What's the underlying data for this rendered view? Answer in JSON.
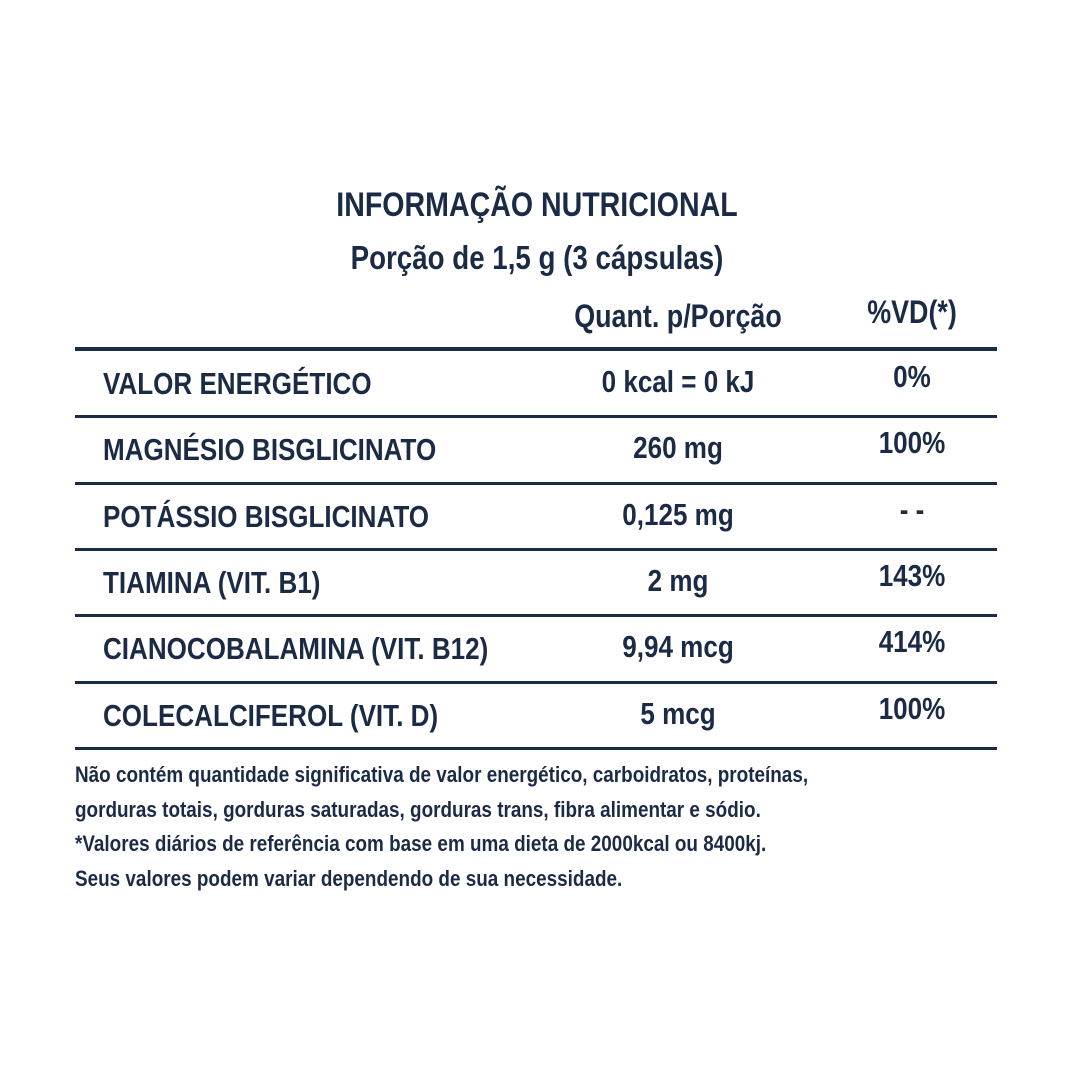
{
  "header": {
    "title": "INFORMAÇÃO NUTRICIONAL",
    "subtitle": "Porção de 1,5 g (3 cápsulas)"
  },
  "table": {
    "columns": [
      "Quant. p/Porção",
      "%VD(*)"
    ],
    "rows": [
      [
        "VALOR ENERGÉTICO",
        "0 kcal = 0 kJ",
        "0%"
      ],
      [
        "MAGNÉSIO BISGLICINATO",
        "260 mg",
        "100%"
      ],
      [
        "POTÁSSIO BISGLICINATO",
        "0,125 mg",
        "- -"
      ],
      [
        "TIAMINA (VIT. B1)",
        "2 mg",
        "143%"
      ],
      [
        "CIANOCOBALAMINA (VIT. B12)",
        "9,94 mcg",
        "414%"
      ],
      [
        "COLECALCIFEROL (VIT. D)",
        "5 mcg",
        "100%"
      ]
    ]
  },
  "footnote": [
    "Não contém quantidade significativa de valor energético, carboidratos, proteínas,",
    "gorduras totais, gorduras saturadas, gorduras trans, fibra alimentar e sódio.",
    "*Valores diários de referência com base em uma dieta de 2000kcal ou 8400kj.",
    "Seus valores podem variar dependendo de sua necessidade."
  ]
}
